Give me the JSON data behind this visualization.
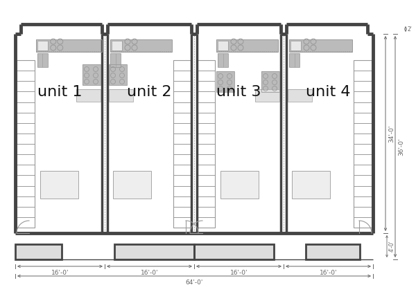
{
  "bg_color": "#ffffff",
  "wall_color": "#444444",
  "unit_labels": [
    "unit 1",
    "unit 2",
    "unit 3",
    "unit 4"
  ],
  "dim_labels_bottom": [
    "16'-0'",
    "16'-0'",
    "16'-0'",
    "16'-0'"
  ],
  "dim_total": "64'-0'",
  "dim_right_inner": "34'-0'",
  "dim_right_outer": "36'-0'",
  "dim_right_top": "2'",
  "dim_right_bottom": "4'-0'",
  "wall_gray": "#555555",
  "light_gray": "#cccccc",
  "medium_gray": "#999999",
  "furn_gray": "#bbbbbb",
  "dim_color": "#666666"
}
